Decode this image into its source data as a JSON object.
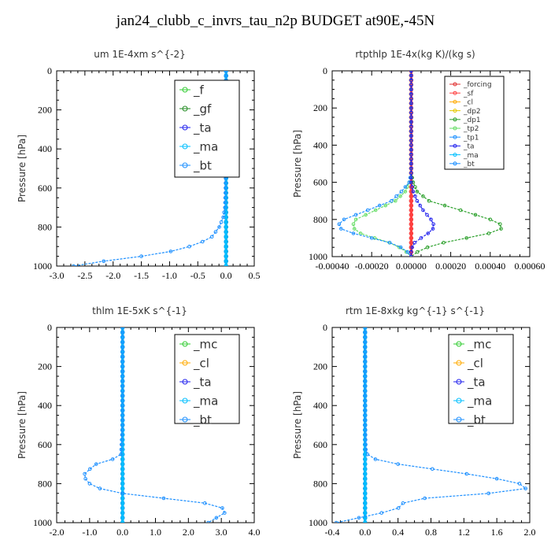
{
  "title": "jan24_clubb_c_invrs_tau_n2p  BUDGET at90E,-45N",
  "chart_data": [
    {
      "type": "line",
      "title": "um  1E-4xm s^{-2}",
      "ylabel": "Pressure [hPa]",
      "xlim": [
        -3.0,
        0.5
      ],
      "ylim": [
        1000,
        0
      ],
      "xticks": [
        "-3.0",
        "-2.5",
        "-2.0",
        "-1.5",
        "-1.0",
        "-0.5",
        "0.0",
        "0.5"
      ],
      "yticks": [
        "0",
        "200",
        "400",
        "600",
        "800",
        "1000"
      ],
      "legend": [
        "_f",
        "_gf",
        "_ta",
        "_ma",
        "_bt"
      ],
      "legend_position": "top-right",
      "series": [
        {
          "name": "_f",
          "color": "#33cc33",
          "y": [
            0,
            1000
          ],
          "x": [
            0.0,
            0.0
          ]
        },
        {
          "name": "_gf",
          "color": "#228b22",
          "y": [
            0,
            1000
          ],
          "x": [
            0.0,
            0.0
          ]
        },
        {
          "name": "_ta",
          "color": "#1a1aff",
          "y": [
            0,
            1000
          ],
          "x": [
            0.0,
            0.0
          ]
        },
        {
          "name": "_ma",
          "color": "#00bfff",
          "y": [
            0,
            1000
          ],
          "x": [
            0.0,
            0.0
          ]
        },
        {
          "name": "_bt",
          "color": "#1e90ff",
          "y": [
            0,
            200,
            400,
            600,
            700,
            750,
            800,
            850,
            880,
            905,
            930,
            950,
            970,
            985,
            995
          ],
          "x": [
            0.0,
            0.0,
            0.0,
            -0.01,
            -0.02,
            -0.05,
            -0.12,
            -0.25,
            -0.45,
            -0.7,
            -1.05,
            -1.5,
            -2.0,
            -2.5,
            -2.7
          ]
        }
      ]
    },
    {
      "type": "line",
      "title": "rtpthlp  1E-4x(kg K)/(kg s)",
      "ylabel": "Pressure [hPa]",
      "xlim": [
        -0.0004,
        0.0006
      ],
      "ylim": [
        1000,
        0
      ],
      "xticks": [
        "-0.00040",
        "-0.00020",
        "0.00000",
        "0.00020",
        "0.00040",
        "0.00060"
      ],
      "yticks": [
        "0",
        "200",
        "400",
        "600",
        "800",
        "1000"
      ],
      "legend": [
        "_forcing",
        "_sf",
        "_cl",
        "_dp2",
        "_dp1",
        "_tp2",
        "_tp1",
        "_ta",
        "_ma",
        "_bt"
      ],
      "legend_position": "top-right",
      "series": [
        {
          "name": "_forcing",
          "color": "#e03030",
          "y": [
            0,
            1000
          ],
          "x": [
            0.0,
            0.0
          ]
        },
        {
          "name": "_sf",
          "color": "#ff4040",
          "y": [
            0,
            1000
          ],
          "x": [
            0.0,
            0.0
          ]
        },
        {
          "name": "_dp1",
          "color": "#2ca02c",
          "y": [
            0,
            550,
            600,
            650,
            700,
            750,
            800,
            840,
            880,
            920,
            960,
            1000
          ],
          "x": [
            0.0,
            0.0,
            1e-05,
            3e-05,
            9e-05,
            0.00025,
            0.0004,
            0.00048,
            0.00038,
            0.00018,
            5e-05,
            0.0
          ]
        },
        {
          "name": "_tp2",
          "color": "#66dd66",
          "y": [
            0,
            550,
            600,
            650,
            700,
            750,
            800,
            840,
            880,
            920,
            960,
            1000
          ],
          "x": [
            0.0,
            0.0,
            -1e-05,
            -3e-05,
            -8e-05,
            -0.00018,
            -0.00028,
            -0.0003,
            -0.00025,
            -0.00012,
            -4e-05,
            0.0
          ]
        },
        {
          "name": "_tp1",
          "color": "#1e90ff",
          "y": [
            0,
            550,
            600,
            650,
            700,
            750,
            800,
            840,
            880,
            920,
            960,
            1000
          ],
          "x": [
            0.0,
            0.0,
            -1e-05,
            -5e-05,
            -0.0001,
            -0.00022,
            -0.00034,
            -0.00038,
            -0.00028,
            -0.00012,
            -3e-05,
            0.0
          ]
        },
        {
          "name": "_ta",
          "color": "#2222ee",
          "y": [
            0,
            550,
            600,
            650,
            700,
            750,
            800,
            840,
            880,
            920,
            960,
            1000
          ],
          "x": [
            0.0,
            0.0,
            0.0,
            1e-05,
            3e-05,
            6e-05,
            0.0001,
            0.00012,
            8e-05,
            2e-05,
            0.0,
            0.0
          ]
        }
      ]
    },
    {
      "type": "line",
      "title": "thlm  1E-5xK s^{-1}",
      "ylabel": "Pressure [hPa]",
      "xlim": [
        -2.0,
        4.0
      ],
      "ylim": [
        1000,
        0
      ],
      "xticks": [
        "-2.0",
        "-1.0",
        "0.0",
        "1.0",
        "2.0",
        "3.0",
        "4.0"
      ],
      "yticks": [
        "0",
        "200",
        "400",
        "600",
        "800",
        "1000"
      ],
      "legend": [
        "_mc",
        "_cl",
        "_ta",
        "_ma",
        "_bt"
      ],
      "legend_position": "top-right",
      "series": [
        {
          "name": "_mc",
          "color": "#33cc33",
          "y": [
            0,
            1000
          ],
          "x": [
            0.0,
            0.0
          ]
        },
        {
          "name": "_ta",
          "color": "#1a1aff",
          "y": [
            0,
            1000
          ],
          "x": [
            0.0,
            0.0
          ]
        },
        {
          "name": "_ma",
          "color": "#00bfff",
          "y": [
            0,
            1000
          ],
          "x": [
            0.0,
            0.0
          ]
        },
        {
          "name": "_bt",
          "color": "#1e90ff",
          "y": [
            0,
            500,
            650,
            670,
            700,
            740,
            760,
            800,
            840,
            850,
            870,
            900,
            920,
            945,
            960,
            980,
            995
          ],
          "x": [
            0.0,
            0.0,
            -0.05,
            -0.2,
            -0.8,
            -1.1,
            -1.2,
            -1.0,
            -0.5,
            0.0,
            1.0,
            2.5,
            3.0,
            3.15,
            3.0,
            2.8,
            2.6
          ]
        }
      ]
    },
    {
      "type": "line",
      "title": "rtm  1E-8xkg kg^{-1} s^{-1}",
      "ylabel": "Pressure [hPa]",
      "xlim": [
        -0.4,
        2.0
      ],
      "ylim": [
        1000,
        0
      ],
      "xticks": [
        "-0.4",
        "0.0",
        "0.4",
        "0.8",
        "1.2",
        "1.6",
        "2.0"
      ],
      "yticks": [
        "0",
        "200",
        "400",
        "600",
        "800",
        "1000"
      ],
      "legend": [
        "_mc",
        "_cl",
        "_ta",
        "_ma",
        "_bt"
      ],
      "legend_position": "top-right",
      "series": [
        {
          "name": "_mc",
          "color": "#33cc33",
          "y": [
            0,
            1000
          ],
          "x": [
            0.0,
            0.0
          ]
        },
        {
          "name": "_ta",
          "color": "#1a1aff",
          "y": [
            0,
            1000
          ],
          "x": [
            0.0,
            0.0
          ]
        },
        {
          "name": "_ma",
          "color": "#00bfff",
          "y": [
            0,
            1000
          ],
          "x": [
            0.0,
            0.0
          ]
        },
        {
          "name": "_bt",
          "color": "#1e90ff",
          "y": [
            0,
            500,
            640,
            660,
            680,
            700,
            730,
            760,
            790,
            810,
            830,
            850,
            870,
            890,
            910,
            930,
            950,
            970,
            990,
            1000
          ],
          "x": [
            0.0,
            0.0,
            0.01,
            0.05,
            0.15,
            0.4,
            0.9,
            1.4,
            1.8,
            1.95,
            1.95,
            1.5,
            0.8,
            0.5,
            0.42,
            0.4,
            0.2,
            0.0,
            -0.3,
            -0.35
          ]
        }
      ]
    }
  ]
}
